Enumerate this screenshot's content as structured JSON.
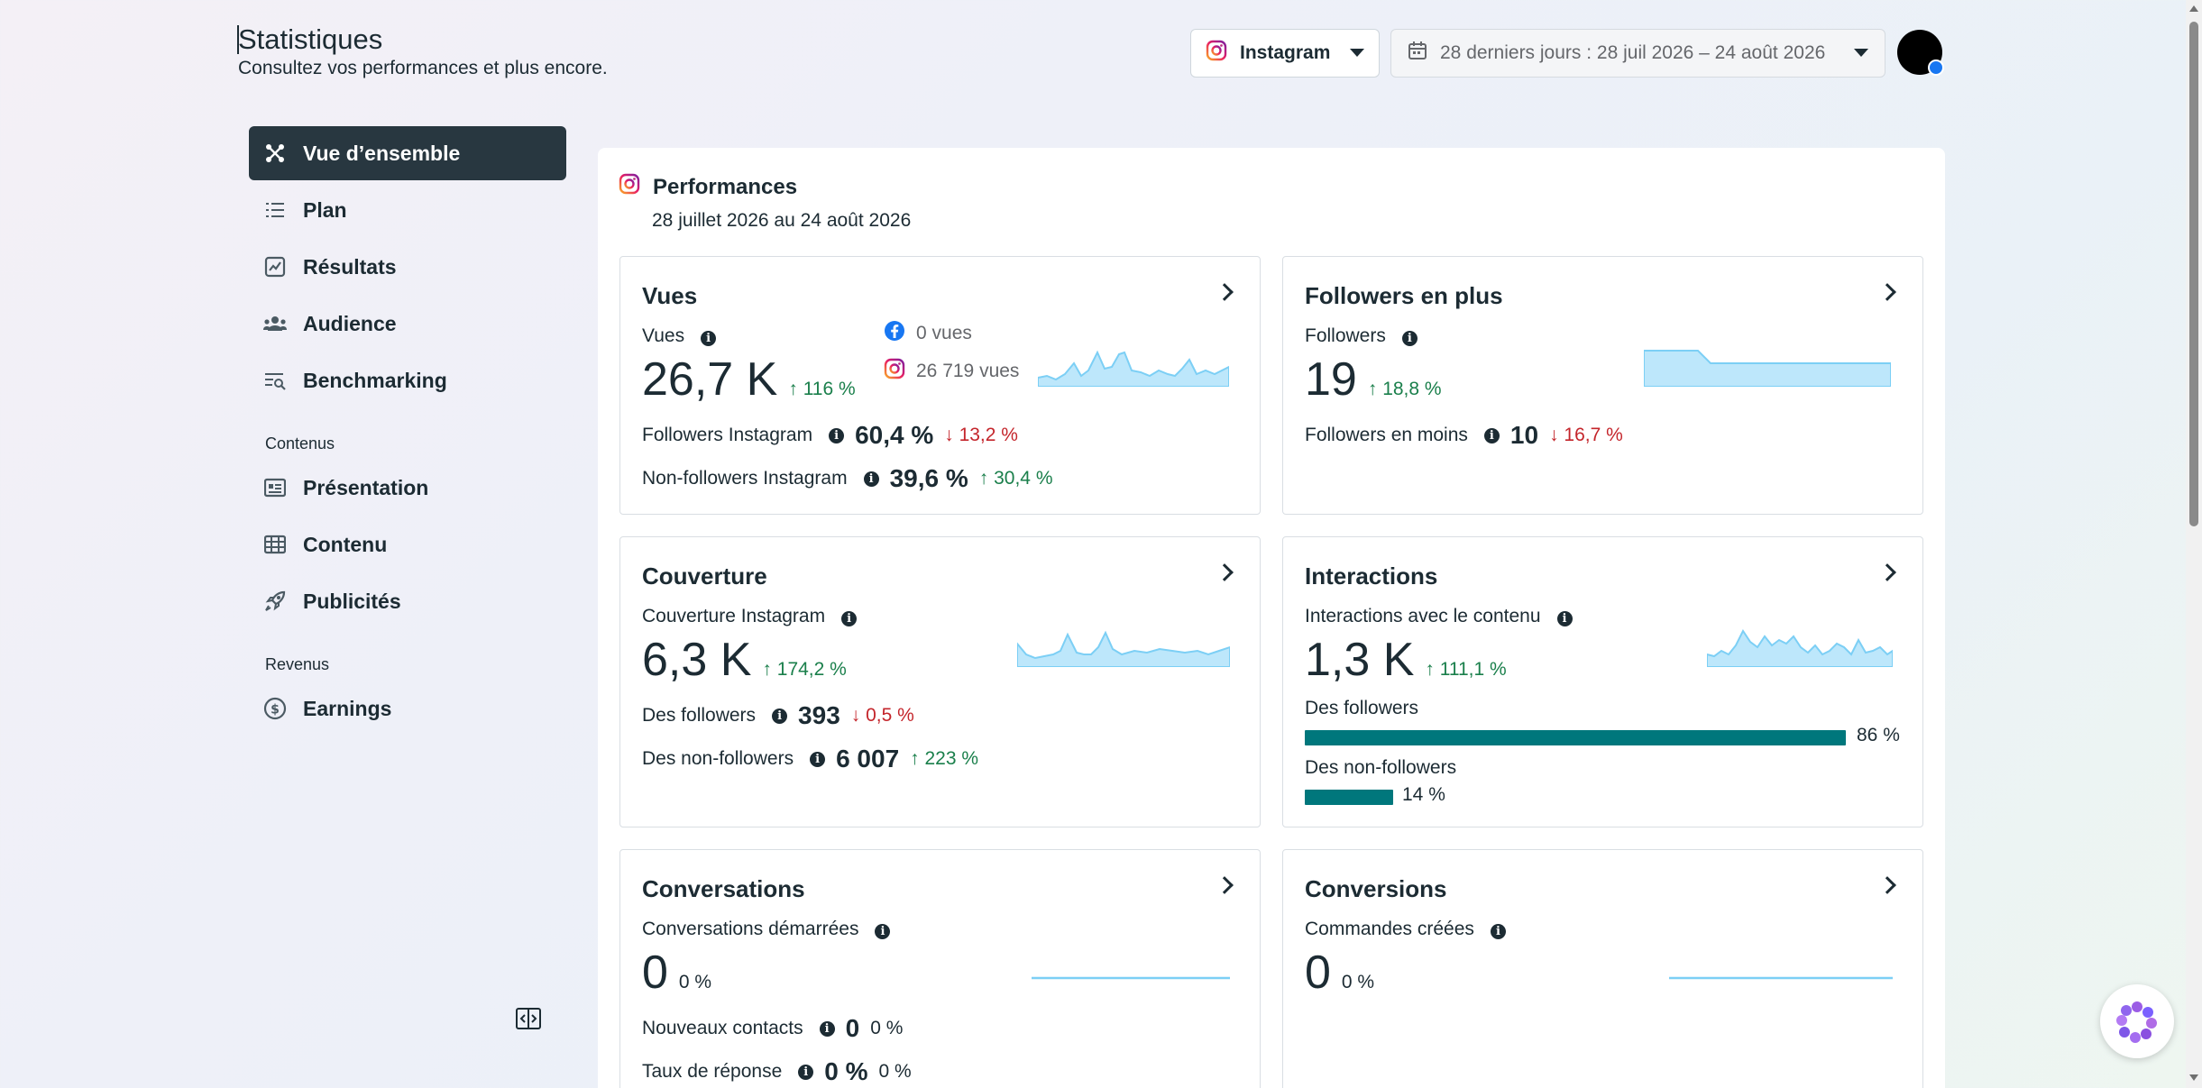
{
  "header": {
    "title": "Statistiques",
    "subtitle": "Consultez vos performances et plus encore.",
    "platform": "Instagram",
    "date_range": "28 derniers jours : 28 juil 2026 – 24 août 2026"
  },
  "sidebar": {
    "items": [
      {
        "label": "Vue d’ensemble",
        "icon": "overview-icon",
        "active": true
      },
      {
        "label": "Plan",
        "icon": "list-icon"
      },
      {
        "label": "Résultats",
        "icon": "chart-icon"
      },
      {
        "label": "Audience",
        "icon": "people-icon"
      },
      {
        "label": "Benchmarking",
        "icon": "benchmark-icon"
      }
    ],
    "section_content": "Contenus",
    "content_items": [
      {
        "label": "Présentation",
        "icon": "presentation-icon"
      },
      {
        "label": "Contenu",
        "icon": "table-icon"
      },
      {
        "label": "Publicités",
        "icon": "rocket-icon"
      }
    ],
    "section_revenue": "Revenus",
    "revenue_items": [
      {
        "label": "Earnings",
        "icon": "dollar-icon"
      }
    ]
  },
  "performance": {
    "title": "Performances",
    "period": "28 juillet 2026 au 24 août 2026"
  },
  "cards": {
    "vues": {
      "title": "Vues",
      "metric_label": "Vues",
      "value": "26,7 K",
      "change": "116 %",
      "facebook_views": "0 vues",
      "instagram_views": "26 719 vues",
      "followers_label": "Followers Instagram",
      "followers_value": "60,4 %",
      "followers_change": "13,2 %",
      "nonfollowers_label": "Non-followers Instagram",
      "nonfollowers_value": "39,6 %",
      "nonfollowers_change": "30,4 %"
    },
    "followers": {
      "title": "Followers en plus",
      "metric_label": "Followers",
      "value": "19",
      "change": "18,8 %",
      "lost_label": "Followers en moins",
      "lost_value": "10",
      "lost_change": "16,7 %"
    },
    "couverture": {
      "title": "Couverture",
      "metric_label": "Couverture Instagram",
      "value": "6,3 K",
      "change": "174,2 %",
      "followers_label": "Des followers",
      "followers_value": "393",
      "followers_change": "0,5 %",
      "nonfollowers_label": "Des non-followers",
      "nonfollowers_value": "6 007",
      "nonfollowers_change": "223 %"
    },
    "interactions": {
      "title": "Interactions",
      "metric_label": "Interactions avec le contenu",
      "value": "1,3 K",
      "change": "111,1 %",
      "followers_label": "Des followers",
      "followers_pct": "86 %",
      "followers_fraction": 0.86,
      "nonfollowers_label": "Des non-followers",
      "nonfollowers_pct": "14 %",
      "nonfollowers_fraction": 0.14
    },
    "conversations": {
      "title": "Conversations",
      "metric_label": "Conversations démarrées",
      "value": "0",
      "change": "0 %",
      "contacts_label": "Nouveaux contacts",
      "contacts_value": "0",
      "contacts_change": "0 %",
      "response_label": "Taux de réponse",
      "response_value": "0 %",
      "response_change": "0 %"
    },
    "conversions": {
      "title": "Conversions",
      "metric_label": "Commandes créées",
      "value": "0",
      "change": "0 %"
    }
  },
  "colors": {
    "accent": "#00777c",
    "spark_fill": "#bde7fb",
    "spark_line": "#7ccff5",
    "up": "#1a7f4b",
    "down": "#c4252b",
    "active_nav": "#283740"
  }
}
